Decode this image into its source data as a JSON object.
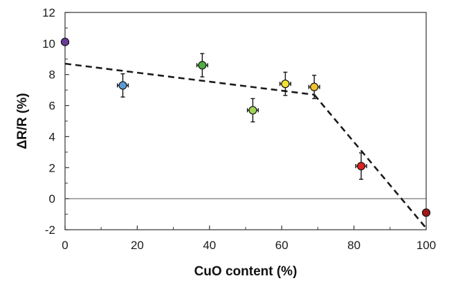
{
  "chart_data": {
    "type": "scatter",
    "xlabel": "CuO content (%)",
    "ylabel": "ΔR/R (%)",
    "xlim": [
      0,
      100
    ],
    "ylim": [
      -2,
      12
    ],
    "xticks": [
      0,
      20,
      40,
      60,
      80,
      100
    ],
    "yticks": [
      -2,
      0,
      2,
      4,
      6,
      8,
      10,
      12
    ],
    "grid": false,
    "zero_line": true,
    "points": [
      {
        "x": 0,
        "y": 10.1,
        "yerr": 0,
        "xerr": 0,
        "color": "#6a3d9a"
      },
      {
        "x": 16,
        "y": 7.3,
        "yerr": 0.75,
        "xerr": 1.5,
        "color": "#5b9bd5"
      },
      {
        "x": 38,
        "y": 8.6,
        "yerr": 0.75,
        "xerr": 1.5,
        "color": "#4caf3f"
      },
      {
        "x": 52,
        "y": 5.7,
        "yerr": 0.75,
        "xerr": 1.5,
        "color": "#9fd356"
      },
      {
        "x": 61,
        "y": 7.4,
        "yerr": 0.75,
        "xerr": 1.5,
        "color": "#f2e233"
      },
      {
        "x": 69,
        "y": 7.2,
        "yerr": 0.75,
        "xerr": 1.5,
        "color": "#f2c12e"
      },
      {
        "x": 82,
        "y": 2.1,
        "yerr": 0.85,
        "xerr": 1.5,
        "color": "#e02020"
      },
      {
        "x": 100,
        "y": -0.9,
        "yerr": 0,
        "xerr": 0,
        "color": "#a01818"
      }
    ],
    "fit_lines": [
      {
        "x": [
          0,
          69
        ],
        "y": [
          8.7,
          6.7
        ],
        "style": "dashed"
      },
      {
        "x": [
          69,
          100
        ],
        "y": [
          6.7,
          -1.9
        ],
        "style": "dashed"
      }
    ]
  }
}
